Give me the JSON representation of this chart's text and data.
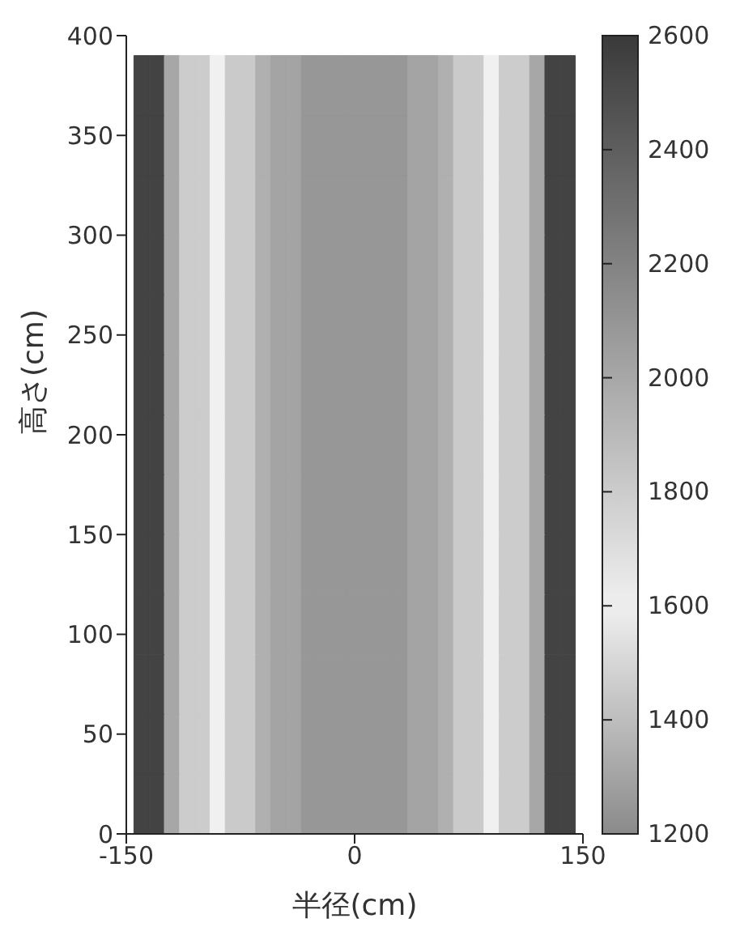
{
  "chart_data": {
    "type": "heatmap",
    "xlabel": "半径(cm)",
    "ylabel": "高さ(cm)",
    "x": [
      -140,
      -130,
      -120,
      -110,
      -100,
      -90,
      -80,
      -70,
      -60,
      -50,
      -40,
      -30,
      -20,
      -10,
      0,
      10,
      20,
      30,
      40,
      50,
      60,
      70,
      80,
      90,
      100,
      110,
      120,
      130,
      140
    ],
    "y": [
      15,
      45,
      75,
      105,
      135,
      165,
      195,
      225,
      255,
      285,
      315,
      345,
      375
    ],
    "cells": [
      [
        2550,
        2550,
        2000,
        1800,
        1800,
        1600,
        1450,
        1450,
        1350,
        1300,
        1300,
        1250,
        1250,
        1250,
        1250,
        1250,
        1250,
        1250,
        1300,
        1300,
        1350,
        1450,
        1450,
        1600,
        1800,
        1800,
        2000,
        2550,
        2550
      ],
      [
        2550,
        2550,
        2000,
        1800,
        1800,
        1600,
        1450,
        1450,
        1350,
        1300,
        1300,
        1250,
        1250,
        1250,
        1250,
        1250,
        1250,
        1250,
        1300,
        1300,
        1350,
        1450,
        1450,
        1600,
        1800,
        1800,
        2000,
        2550,
        2550
      ],
      [
        2550,
        2550,
        2000,
        1800,
        1800,
        1600,
        1450,
        1450,
        1350,
        1300,
        1300,
        1250,
        1250,
        1250,
        1250,
        1250,
        1250,
        1250,
        1300,
        1300,
        1350,
        1450,
        1450,
        1600,
        1800,
        1800,
        2000,
        2550,
        2550
      ],
      [
        2550,
        2550,
        2000,
        1800,
        1800,
        1600,
        1450,
        1450,
        1350,
        1300,
        1300,
        1250,
        1250,
        1250,
        1250,
        1250,
        1250,
        1250,
        1300,
        1300,
        1350,
        1450,
        1450,
        1600,
        1800,
        1800,
        2000,
        2550,
        2550
      ],
      [
        2550,
        2550,
        2000,
        1800,
        1800,
        1600,
        1450,
        1450,
        1350,
        1300,
        1300,
        1250,
        1250,
        1250,
        1250,
        1250,
        1250,
        1250,
        1300,
        1300,
        1350,
        1450,
        1450,
        1600,
        1800,
        1800,
        2000,
        2550,
        2550
      ],
      [
        2550,
        2550,
        2000,
        1800,
        1800,
        1600,
        1450,
        1450,
        1350,
        1300,
        1300,
        1250,
        1250,
        1250,
        1250,
        1250,
        1250,
        1250,
        1300,
        1300,
        1350,
        1450,
        1450,
        1600,
        1800,
        1800,
        2000,
        2550,
        2550
      ],
      [
        2550,
        2550,
        2000,
        1800,
        1800,
        1600,
        1450,
        1450,
        1350,
        1300,
        1300,
        1250,
        1250,
        1250,
        1250,
        1250,
        1250,
        1250,
        1300,
        1300,
        1350,
        1450,
        1450,
        1600,
        1800,
        1800,
        2000,
        2550,
        2550
      ],
      [
        2550,
        2550,
        2000,
        1800,
        1800,
        1600,
        1450,
        1450,
        1350,
        1300,
        1300,
        1250,
        1250,
        1250,
        1250,
        1250,
        1250,
        1250,
        1300,
        1300,
        1350,
        1450,
        1450,
        1600,
        1800,
        1800,
        2000,
        2550,
        2550
      ],
      [
        2550,
        2550,
        2000,
        1800,
        1800,
        1600,
        1450,
        1450,
        1350,
        1300,
        1300,
        1250,
        1250,
        1250,
        1250,
        1250,
        1250,
        1250,
        1300,
        1300,
        1350,
        1450,
        1450,
        1600,
        1800,
        1800,
        2000,
        2550,
        2550
      ],
      [
        2550,
        2550,
        2000,
        1800,
        1800,
        1600,
        1450,
        1450,
        1350,
        1300,
        1300,
        1250,
        1250,
        1250,
        1250,
        1250,
        1250,
        1250,
        1300,
        1300,
        1350,
        1450,
        1450,
        1600,
        1800,
        1800,
        2000,
        2550,
        2550
      ],
      [
        2550,
        2550,
        2000,
        1800,
        1800,
        1600,
        1450,
        1450,
        1350,
        1300,
        1300,
        1250,
        1250,
        1250,
        1250,
        1250,
        1250,
        1250,
        1300,
        1300,
        1350,
        1450,
        1450,
        1600,
        1800,
        1800,
        2000,
        2550,
        2550
      ],
      [
        2550,
        2550,
        2000,
        1800,
        1800,
        1600,
        1450,
        1450,
        1350,
        1300,
        1300,
        1250,
        1250,
        1250,
        1250,
        1250,
        1250,
        1250,
        1300,
        1300,
        1350,
        1450,
        1450,
        1600,
        1800,
        1800,
        2000,
        2550,
        2550
      ],
      [
        2550,
        2550,
        2000,
        1800,
        1800,
        1600,
        1450,
        1450,
        1350,
        1300,
        1300,
        1250,
        1250,
        1250,
        1250,
        1250,
        1250,
        1250,
        1300,
        1300,
        1350,
        1450,
        1450,
        1600,
        1800,
        1800,
        2000,
        2550,
        2550
      ]
    ],
    "xlim": [
      -150,
      150
    ],
    "xticks": [
      -150,
      0,
      150
    ],
    "ylim": [
      0,
      400
    ],
    "yticks": [
      0,
      50,
      100,
      150,
      200,
      250,
      300,
      350,
      400
    ],
    "clim": [
      1200,
      2600
    ],
    "cticks": [
      1200,
      1400,
      1600,
      1800,
      2000,
      2200,
      2400,
      2600
    ]
  }
}
